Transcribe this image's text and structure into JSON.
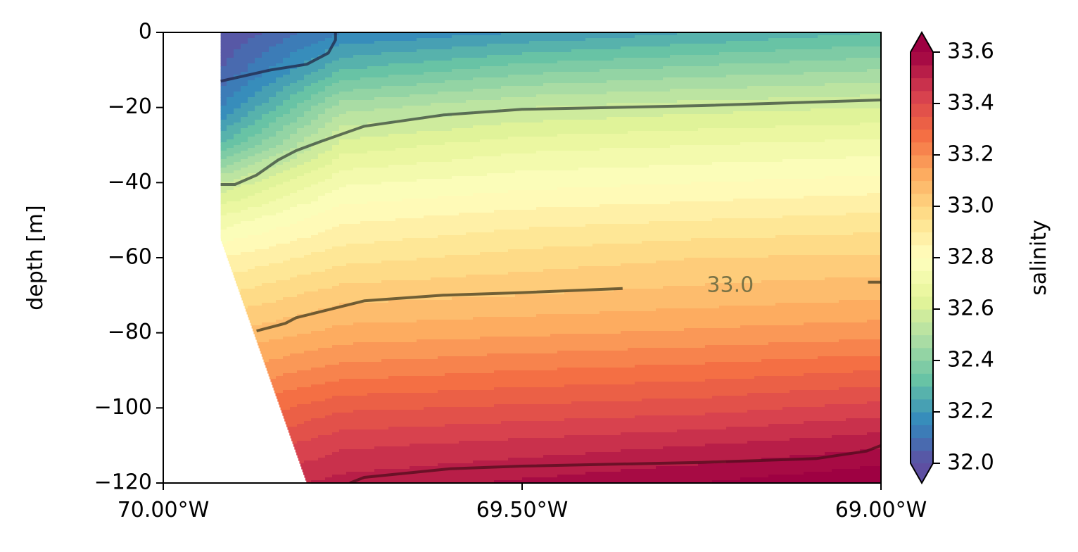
{
  "chart_data": {
    "type": "heatmap",
    "title": "",
    "xlabel": "",
    "ylabel": "depth [m]",
    "xlim": [
      -70.0,
      -69.0
    ],
    "ylim": [
      -120,
      0
    ],
    "x_ticks": [
      {
        "value": -70.0,
        "label": "70.00°W"
      },
      {
        "value": -69.5,
        "label": "69.50°W"
      },
      {
        "value": -69.0,
        "label": "69.00°W"
      }
    ],
    "y_ticks": [
      {
        "value": 0,
        "label": "0"
      },
      {
        "value": -20,
        "label": "−20"
      },
      {
        "value": -40,
        "label": "−40"
      },
      {
        "value": -60,
        "label": "−60"
      },
      {
        "value": -80,
        "label": "−80"
      },
      {
        "value": -100,
        "label": "−100"
      },
      {
        "value": -120,
        "label": "−120"
      }
    ],
    "colorbar": {
      "label": "salinity",
      "range": [
        32.0,
        33.6
      ],
      "extend": "both",
      "colormap": "Spectral_r",
      "ticks": [
        {
          "value": 32.0,
          "label": "32.0"
        },
        {
          "value": 32.2,
          "label": "32.2"
        },
        {
          "value": 32.4,
          "label": "32.4"
        },
        {
          "value": 32.6,
          "label": "32.6"
        },
        {
          "value": 32.8,
          "label": "32.8"
        },
        {
          "value": 33.0,
          "label": "33.0"
        },
        {
          "value": 33.2,
          "label": "33.2"
        },
        {
          "value": 33.4,
          "label": "33.4"
        },
        {
          "value": 33.6,
          "label": "33.6"
        }
      ],
      "colormap_stops": [
        "#5e4fa2",
        "#3288bd",
        "#66c2a5",
        "#abdda4",
        "#e6f598",
        "#ffffbf",
        "#fee08b",
        "#fdae61",
        "#f46d43",
        "#d53e4f",
        "#9e0142"
      ]
    },
    "seafloor_boundary": [
      [
        -69.92,
        0
      ],
      [
        -69.92,
        -55
      ],
      [
        -69.8,
        -120
      ]
    ],
    "field_samples": {
      "x": [
        -69.92,
        -69.75,
        -69.5,
        -69.25,
        -69.0
      ],
      "depth": [
        0,
        -10,
        -20,
        -30,
        -40,
        -50,
        -60,
        -70,
        -80,
        -90,
        -100,
        -110,
        -120
      ],
      "salinity": [
        [
          32.0,
          32.15,
          32.2,
          32.25,
          32.3
        ],
        [
          32.05,
          32.3,
          32.38,
          32.42,
          32.45
        ],
        [
          32.15,
          32.48,
          32.55,
          32.58,
          32.6
        ],
        [
          32.3,
          32.62,
          32.68,
          32.7,
          32.72
        ],
        [
          32.55,
          32.74,
          32.78,
          32.8,
          32.82
        ],
        [
          32.72,
          32.84,
          32.88,
          32.9,
          32.92
        ],
        [
          32.85,
          32.93,
          32.97,
          33.0,
          33.01
        ],
        [
          32.95,
          33.03,
          33.05,
          33.07,
          33.09
        ],
        [
          33.05,
          33.12,
          33.14,
          33.16,
          33.18
        ],
        [
          33.15,
          33.22,
          33.25,
          33.27,
          33.3
        ],
        [
          33.25,
          33.34,
          33.36,
          33.38,
          33.42
        ],
        [
          33.35,
          33.44,
          33.47,
          33.5,
          33.54
        ],
        [
          33.45,
          33.52,
          33.56,
          33.6,
          33.65
        ]
      ]
    },
    "contours": [
      {
        "level": 32.0,
        "color": "#1f1f3f",
        "points": [
          [
            -69.92,
            -13
          ],
          [
            -69.85,
            -10
          ],
          [
            -69.8,
            -8.5
          ],
          [
            -69.77,
            -5.5
          ],
          [
            -69.76,
            -2
          ],
          [
            -69.76,
            0
          ]
        ]
      },
      {
        "level": 32.5,
        "color": "#2d3a33",
        "points": [
          [
            -69.92,
            -40.5
          ],
          [
            -69.9,
            -40.5
          ],
          [
            -69.87,
            -38
          ],
          [
            -69.84,
            -34
          ],
          [
            -69.815,
            -31.5
          ],
          [
            -69.78,
            -29
          ],
          [
            -69.72,
            -25
          ],
          [
            -69.61,
            -22
          ],
          [
            -69.5,
            -20.5
          ],
          [
            -69.25,
            -19.5
          ],
          [
            -69.0,
            -18
          ]
        ]
      },
      {
        "level": 33.0,
        "color": "#333018",
        "points": [
          [
            -69.87,
            -79.5
          ],
          [
            -69.85,
            -78.5
          ],
          [
            -69.83,
            -77.5
          ],
          [
            -69.815,
            -76
          ],
          [
            -69.72,
            -71.5
          ],
          [
            -69.61,
            -70
          ],
          [
            -69.5,
            -69.3
          ],
          [
            -69.36,
            -68.2
          ]
        ]
      },
      {
        "level": 33.0,
        "color": "#333018",
        "points": [
          [
            -69.018,
            -66.5
          ],
          [
            -69.0,
            -66.5
          ]
        ]
      },
      {
        "level": 33.5,
        "color": "#4a0c1a",
        "points": [
          [
            -69.74,
            -120
          ],
          [
            -69.72,
            -118.5
          ],
          [
            -69.6,
            -116.2
          ],
          [
            -69.5,
            -115.5
          ],
          [
            -69.25,
            -114.5
          ],
          [
            -69.09,
            -113.5
          ],
          [
            -69.02,
            -111.5
          ],
          [
            -69.0,
            -110
          ]
        ]
      }
    ],
    "contour_labels": [
      {
        "text": "33.0",
        "x": -69.21,
        "y": -67.5
      }
    ]
  }
}
